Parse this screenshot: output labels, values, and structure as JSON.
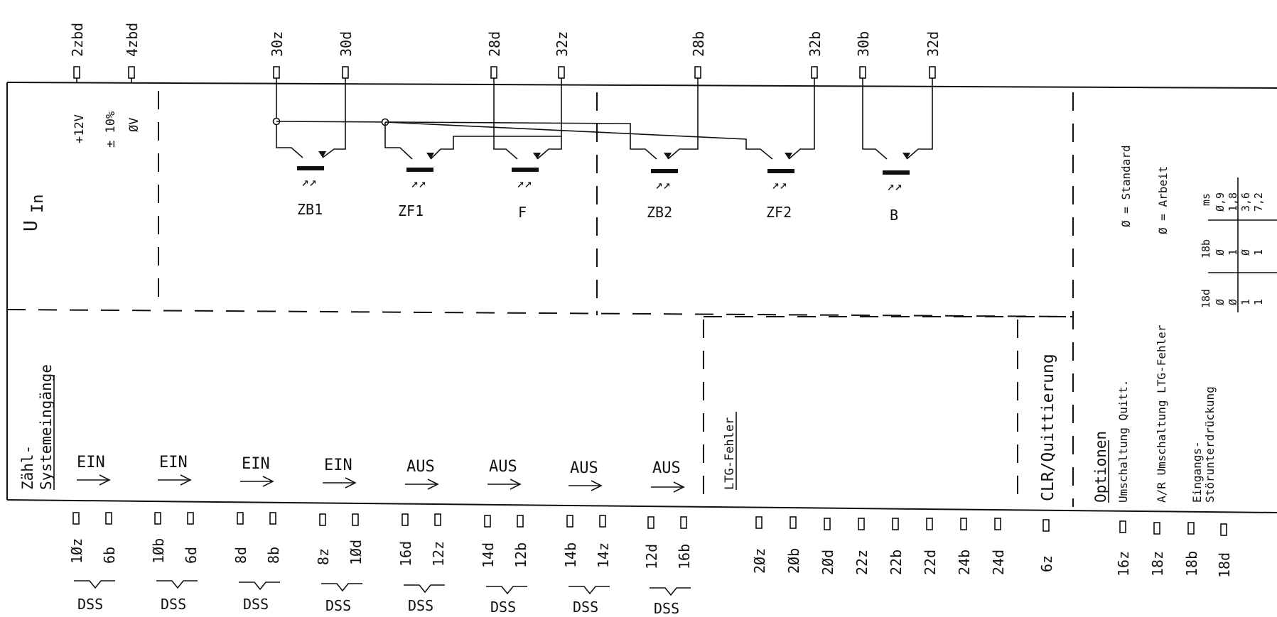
{
  "top_pins": [
    {
      "id": "pin-2zbd",
      "label": "2zbd"
    },
    {
      "id": "pin-4zbd",
      "label": "4zbd"
    },
    {
      "id": "pin-30z",
      "label": "30z"
    },
    {
      "id": "pin-30d",
      "label": "30d"
    },
    {
      "id": "pin-28d",
      "label": "28d"
    },
    {
      "id": "pin-32z",
      "label": "32z"
    },
    {
      "id": "pin-28b",
      "label": "28b"
    },
    {
      "id": "pin-32b",
      "label": "32b"
    },
    {
      "id": "pin-30b",
      "label": "30b"
    },
    {
      "id": "pin-32d",
      "label": "32d"
    }
  ],
  "supply": {
    "plus": "+12V",
    "tol": "± 10%",
    "zero": "ØV"
  },
  "uin": {
    "main": "U",
    "sub": "In"
  },
  "sensors": [
    {
      "id": "zb1",
      "label": "ZB1"
    },
    {
      "id": "zf1",
      "label": "ZF1"
    },
    {
      "id": "f",
      "label": "F"
    },
    {
      "id": "zb2",
      "label": "ZB2"
    },
    {
      "id": "zf2",
      "label": "ZF2"
    },
    {
      "id": "b",
      "label": "B"
    }
  ],
  "system_inputs_title": {
    "line1": "Zähl-",
    "line2": "Systemeingänge"
  },
  "channels": [
    {
      "dir": "EIN",
      "p1": "1Øz",
      "p2": "6b",
      "group": "DSS"
    },
    {
      "dir": "EIN",
      "p1": "1Øb",
      "p2": "6d",
      "group": "DSS"
    },
    {
      "dir": "EIN",
      "p1": "8d",
      "p2": "8b",
      "group": "DSS"
    },
    {
      "dir": "EIN",
      "p1": "8z",
      "p2": "1Ød",
      "group": "DSS"
    },
    {
      "dir": "AUS",
      "p1": "16d",
      "p2": "12z",
      "group": "DSS"
    },
    {
      "dir": "AUS",
      "p1": "14d",
      "p2": "12b",
      "group": "DSS"
    },
    {
      "dir": "AUS",
      "p1": "14b",
      "p2": "14z",
      "group": "DSS"
    },
    {
      "dir": "AUS",
      "p1": "12d",
      "p2": "16b",
      "group": "DSS"
    }
  ],
  "ltg": {
    "title": "LTG-Fehler",
    "pins": [
      "2Øz",
      "2Øb",
      "2Ød",
      "22z",
      "22b",
      "22d",
      "24b",
      "24d"
    ]
  },
  "clr": {
    "title": "CLR/Quittierung",
    "pin": "6z"
  },
  "options": {
    "title": "Optionen",
    "quitt": "Umschaltung Quitt.",
    "ltg": "A/R Umschaltung LTG-Fehler",
    "eingang1": "Eingangs-",
    "eingang2": "Störunterdrückung",
    "std": "Ø = Standard",
    "arbeit": "Ø = Arbeit",
    "pins": [
      "16z",
      "18z",
      "18b",
      "18d"
    ],
    "table": {
      "headers": [
        "18d",
        "18b",
        "ms"
      ],
      "rows": [
        [
          "Ø",
          "Ø",
          "Ø,9"
        ],
        [
          "Ø",
          "1",
          "1,8"
        ],
        [
          "1",
          "Ø",
          "3,6"
        ],
        [
          "1",
          "1",
          "7,2"
        ]
      ]
    }
  }
}
